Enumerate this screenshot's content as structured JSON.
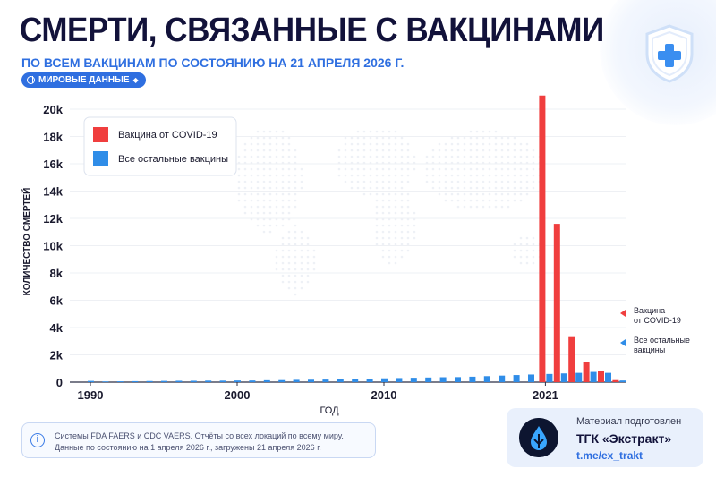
{
  "header": {
    "title": "СМЕРТИ, СВЯЗАННЫЕ С ВАКЦИНАМИ",
    "subtitle": "ПО ВСЕМ ВАКЦИНАМ ПО СОСТОЯНИЮ НА 21 АПРЕЛЯ 2026 Г.",
    "badge": "МИРОВЫЕ ДАННЫЕ"
  },
  "chart_data": {
    "type": "bar",
    "xlabel": "ГОД",
    "ylabel": "КОЛИЧЕСТВО СМЕРТЕЙ",
    "ylim": [
      0,
      20000
    ],
    "yticks": [
      0,
      2000,
      4000,
      6000,
      8000,
      10000,
      12000,
      14000,
      16000,
      18000,
      20000
    ],
    "ytick_labels": [
      "0",
      "2k",
      "4k",
      "6k",
      "8k",
      "10k",
      "12k",
      "14k",
      "16k",
      "18k",
      "20k"
    ],
    "xtick_labels": [
      "1990",
      "2000",
      "2010",
      "2021"
    ],
    "legend": [
      {
        "label": "Вакцина от COVID-19",
        "color": "#f03e3e"
      },
      {
        "label": "Все остальные вакцины",
        "color": "#2f8de8"
      }
    ],
    "legend_position": "top-left",
    "side_labels": [
      "Вакцина от COVID-19",
      "Все остальные вакцины"
    ],
    "other_vaccines": {
      "name": "Все остальные вакцины",
      "color": "#2f8de8",
      "x": [
        1990,
        1991,
        1992,
        1993,
        1994,
        1995,
        1996,
        1997,
        1998,
        1999,
        2000,
        2001,
        2002,
        2003,
        2004,
        2005,
        2006,
        2007,
        2008,
        2009,
        2010,
        2011,
        2012,
        2013,
        2014,
        2015,
        2016,
        2017,
        2018,
        2019,
        2020,
        2021,
        2022,
        2023,
        2024,
        2025,
        2026
      ],
      "values": [
        90,
        50,
        60,
        70,
        80,
        90,
        100,
        100,
        110,
        110,
        120,
        120,
        140,
        150,
        170,
        180,
        190,
        210,
        240,
        260,
        280,
        300,
        320,
        340,
        360,
        370,
        400,
        440,
        480,
        520,
        560,
        600,
        640,
        680,
        750,
        680,
        120
      ]
    },
    "covid_vaccine": {
      "name": "Вакцина от COVID-19",
      "color": "#f03e3e",
      "x": [
        2021,
        2022,
        2023,
        2024,
        2025,
        2026
      ],
      "values": [
        21000,
        11600,
        3300,
        1500,
        850,
        150
      ]
    }
  },
  "footer": {
    "source_line1": "Системы FDA FAERS и CDC VAERS. Отчёты со всех локаций по всему миру.",
    "source_line2": "Данные по состоянию на 1 апреля 2026 г., загружены 21 апреля 2026 г.",
    "credit_line1": "Материал подготовлен",
    "credit_line2": "ТГК «Экстракт»",
    "credit_line3": "t.me/ex_trakt"
  },
  "icons": [
    "shield-plus-icon",
    "globe-icon",
    "info-icon",
    "drop-logo-icon"
  ]
}
